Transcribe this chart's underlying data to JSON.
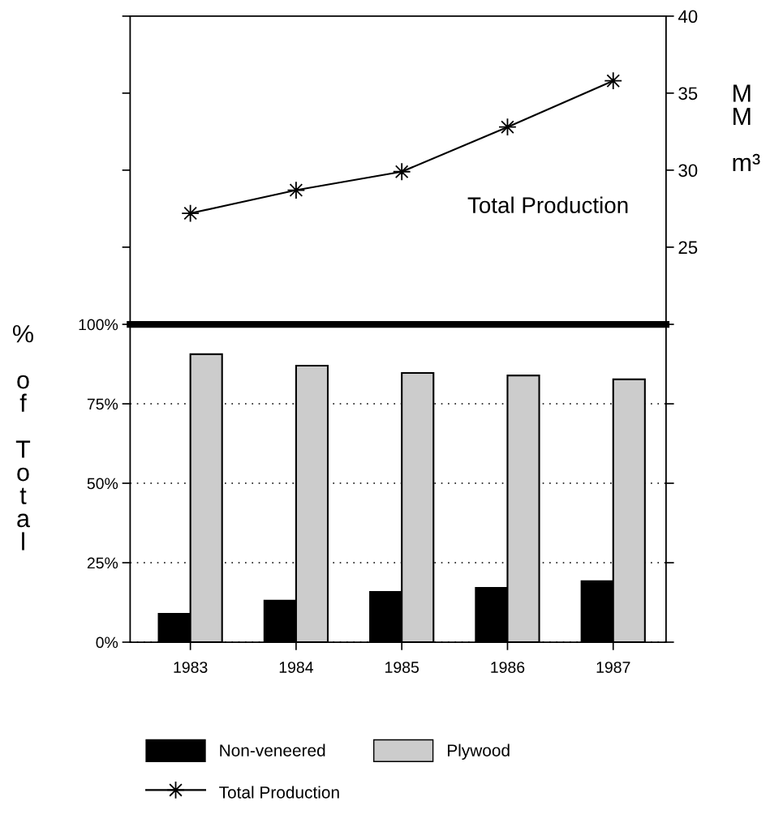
{
  "chart_data": [
    {
      "type": "line",
      "categories": [
        "1983",
        "1984",
        "1985",
        "1986",
        "1987"
      ],
      "series": [
        {
          "name": "Total Production",
          "color": "#000000",
          "axis": "y2",
          "values": [
            27.2,
            28.7,
            29.9,
            32.8,
            35.8
          ]
        }
      ],
      "y2lim": [
        20,
        40
      ],
      "y2ticks": [
        25,
        30,
        35,
        40
      ],
      "y2label": "MM m³",
      "marker": "star",
      "line_style": "solid",
      "tick_labels": "y",
      "annotations": [
        "Total Production"
      ],
      "legend": "bottom"
    },
    {
      "type": "bar",
      "categories": [
        "1983",
        "1984",
        "1985",
        "1986",
        "1987"
      ],
      "series": [
        {
          "name": "Non-veneered",
          "color": "#000000",
          "values": [
            8.9,
            13.1,
            15.8,
            17.1,
            19.2
          ]
        },
        {
          "name": "Plywood",
          "color": "#cccccc",
          "values": [
            90.6,
            87.0,
            84.7,
            83.9,
            82.7
          ]
        }
      ],
      "ylim": [
        0,
        100
      ],
      "yticks": [
        {
          "value": 0,
          "label": "0%"
        },
        {
          "value": 25,
          "label": "25%"
        },
        {
          "value": 50,
          "label": "50%"
        },
        {
          "value": 75,
          "label": "75%"
        },
        {
          "value": 100,
          "label": "100%"
        }
      ],
      "ylabel": "% of Total",
      "grid": "y",
      "legend": "bottom"
    }
  ]
}
